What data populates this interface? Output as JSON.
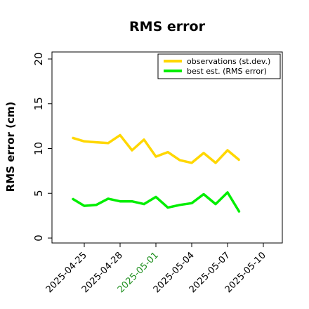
{
  "chart_data": {
    "type": "line",
    "title": "RMS error",
    "ylabel": "RMS error (cm)",
    "xlabel": "",
    "ylim": [
      0,
      20
    ],
    "yticks": [
      0,
      5,
      10,
      15,
      20
    ],
    "grid": false,
    "legend_position": "top-right",
    "x": [
      "2025-04-24",
      "2025-04-25",
      "2025-04-26",
      "2025-04-27",
      "2025-04-28",
      "2025-04-29",
      "2025-04-30",
      "2025-05-01",
      "2025-05-02",
      "2025-05-03",
      "2025-05-04",
      "2025-05-05",
      "2025-05-06",
      "2025-05-07",
      "2025-05-08"
    ],
    "xticks": [
      {
        "label": "2025-04-25",
        "color": "#000000"
      },
      {
        "label": "2025-04-28",
        "color": "#000000"
      },
      {
        "label": "2025-05-01",
        "color": "#1f8f1f"
      },
      {
        "label": "2025-05-04",
        "color": "#000000"
      },
      {
        "label": "2025-05-07",
        "color": "#000000"
      },
      {
        "label": "2025-05-10",
        "color": "#000000"
      }
    ],
    "series": [
      {
        "name": "observations (st.dev.)",
        "color": "#ffd700",
        "values": [
          11.2,
          10.8,
          10.7,
          10.6,
          11.5,
          9.8,
          11.0,
          9.1,
          9.6,
          8.7,
          8.4,
          9.5,
          8.4,
          9.8,
          8.7
        ]
      },
      {
        "name": "best est. (RMS error)",
        "color": "#00ee00",
        "values": [
          4.4,
          3.6,
          3.7,
          4.4,
          4.1,
          4.1,
          3.8,
          4.6,
          3.4,
          3.7,
          3.9,
          4.9,
          3.8,
          5.1,
          2.9
        ]
      }
    ]
  }
}
